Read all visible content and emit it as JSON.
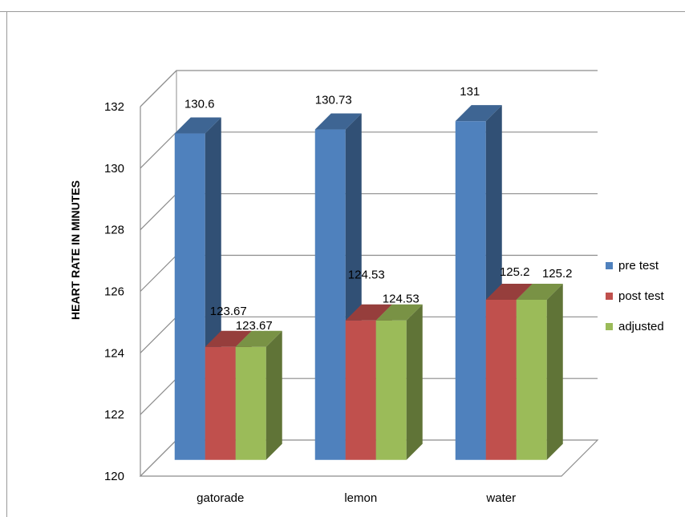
{
  "chart_data": {
    "type": "bar",
    "categories": [
      "gatorade",
      "lemon",
      "water"
    ],
    "series": [
      {
        "name": "pre test",
        "values": [
          130.6,
          130.73,
          131
        ],
        "color": "#4F81BD"
      },
      {
        "name": "post test",
        "values": [
          123.67,
          124.53,
          125.2
        ],
        "color": "#C0504D"
      },
      {
        "name": "adjusted",
        "values": [
          123.67,
          124.53,
          125.2
        ],
        "color": "#9BBB59"
      }
    ],
    "data_labels": [
      [
        "130.6",
        "123.67",
        "123.67"
      ],
      [
        "130.73",
        "124.53",
        "124.53"
      ],
      [
        "131",
        "125.2",
        "125.2"
      ]
    ],
    "ylabel": "HEART RATE IN MINUTES",
    "xlabel": "",
    "ylim": [
      120,
      132
    ],
    "yticks": [
      "120",
      "122",
      "124",
      "126",
      "128",
      "130",
      "132"
    ],
    "grid": true,
    "legend_position": "right",
    "style": "3d-clustered-column"
  }
}
